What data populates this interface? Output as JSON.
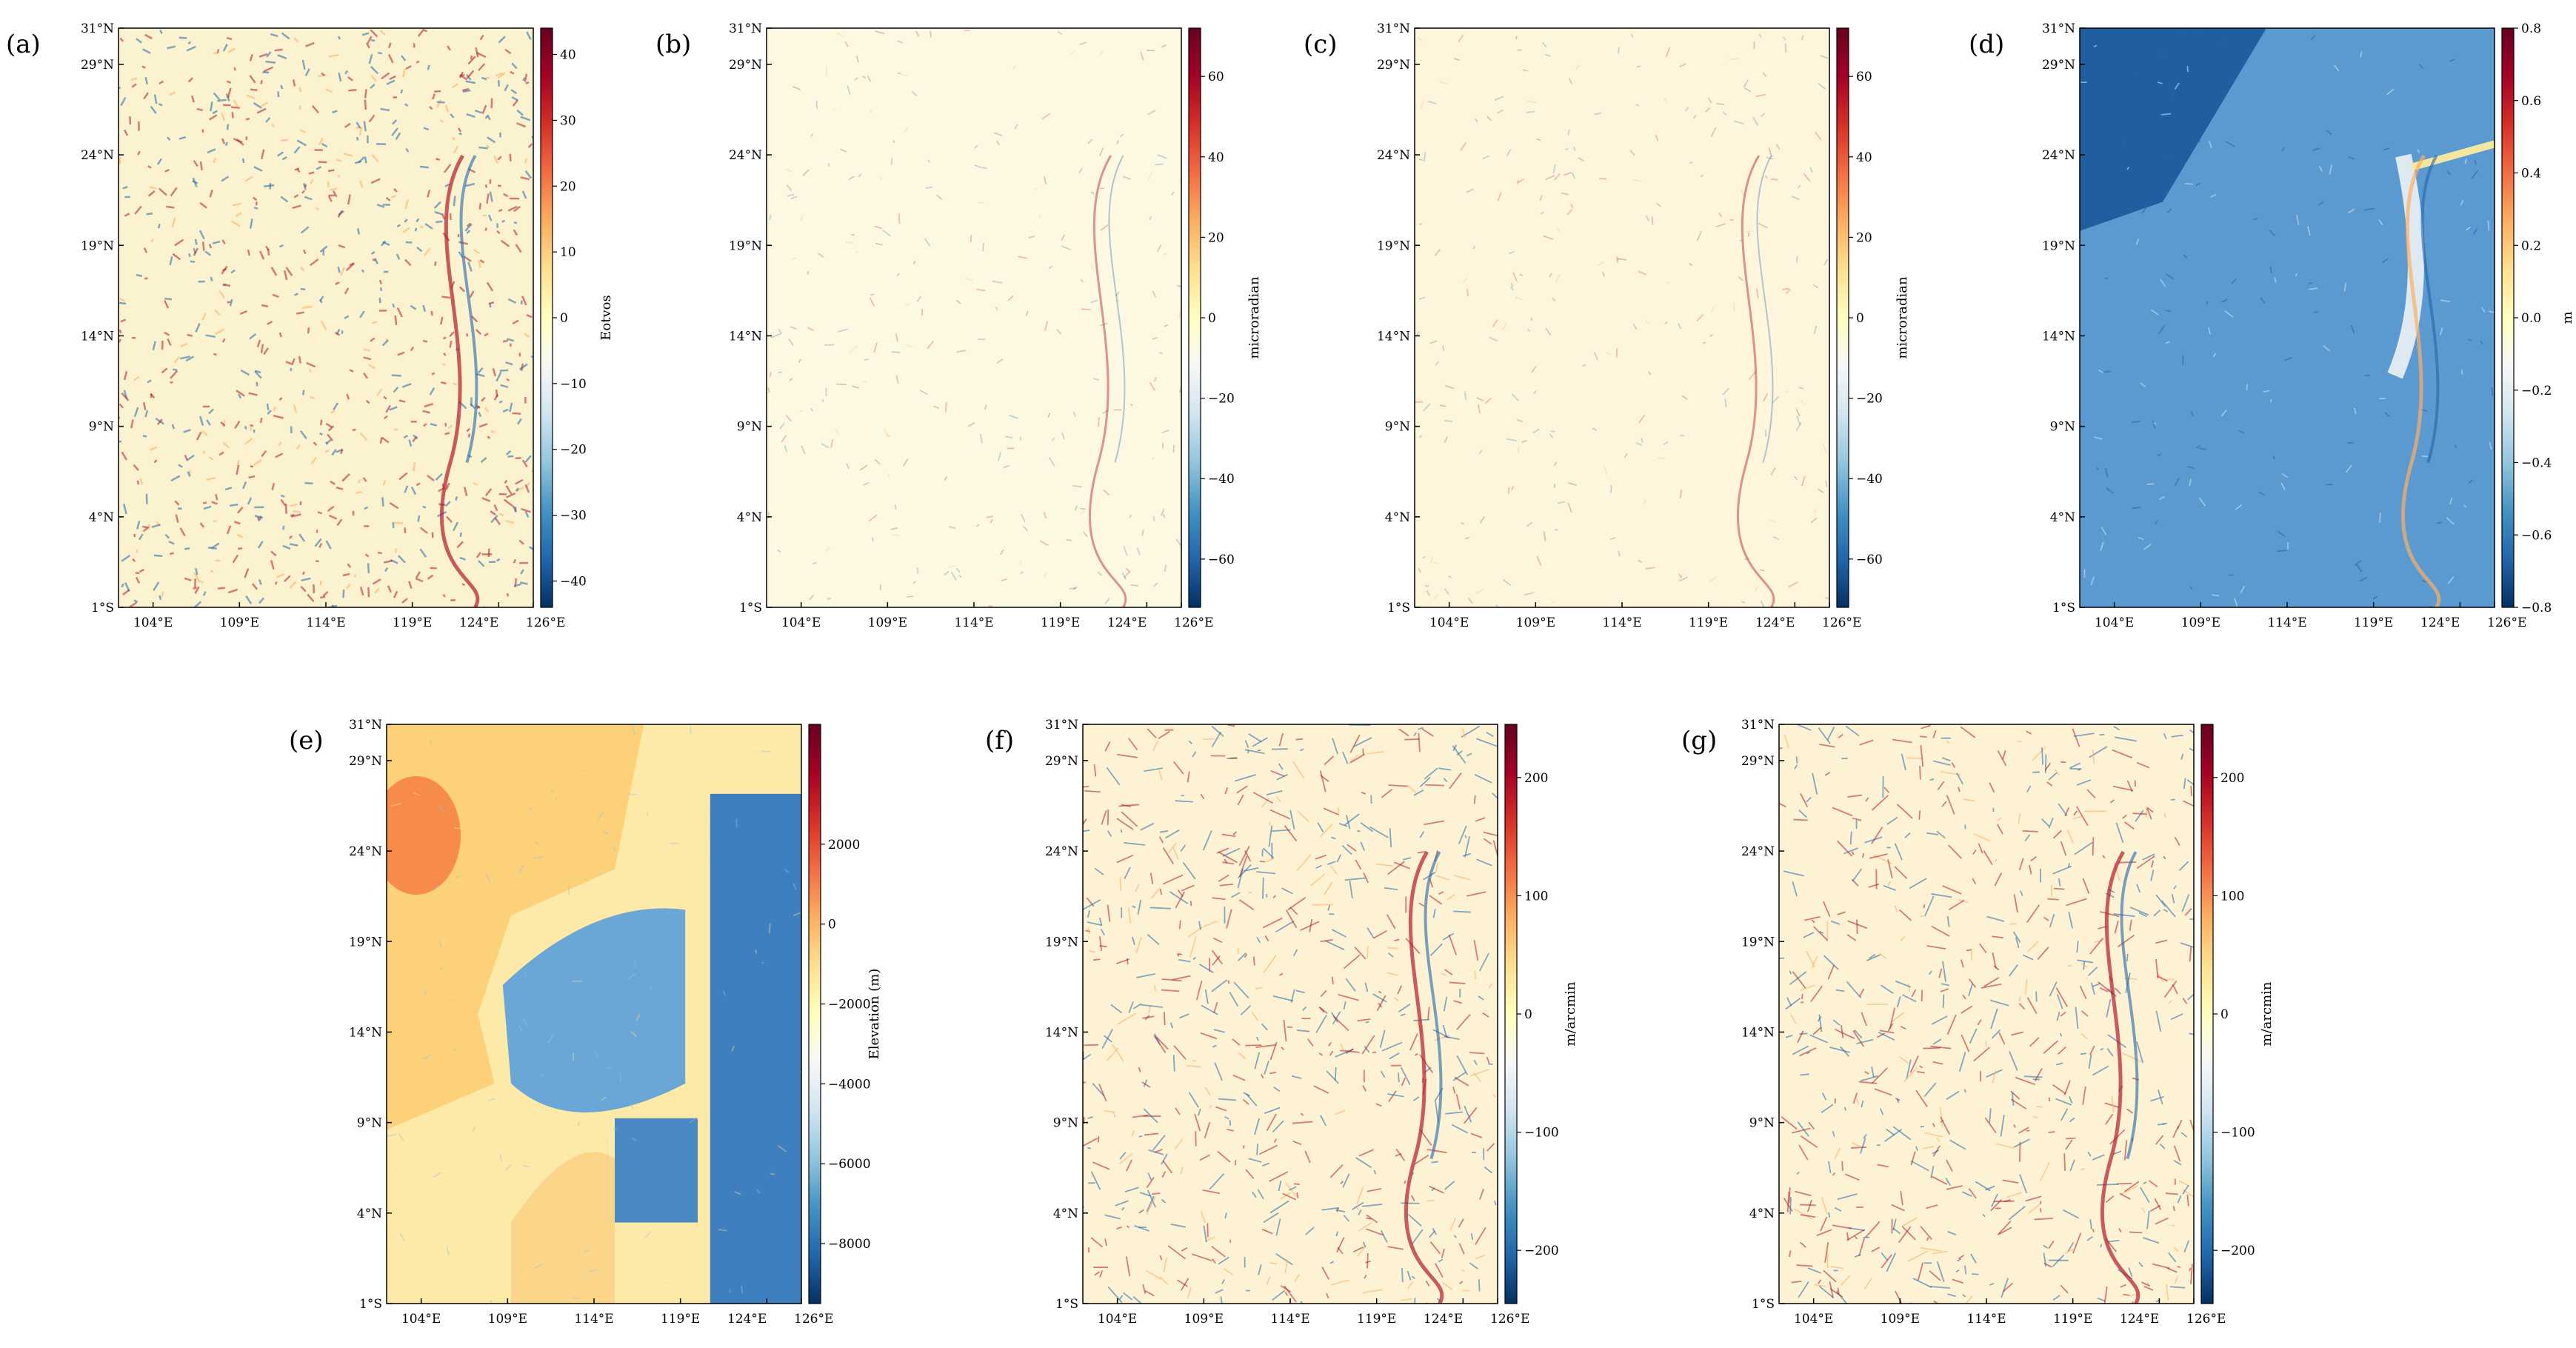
{
  "figure": {
    "colormap": [
      "#053061",
      "#2166ac",
      "#4393c3",
      "#92c5de",
      "#d1e5f0",
      "#f7f7f7",
      "#ffffbf",
      "#fee090",
      "#fdae61",
      "#f46d43",
      "#d73027",
      "#a50026",
      "#67001f"
    ],
    "background": "#ffffff"
  },
  "chart_data": [
    {
      "type": "heatmap",
      "panel_label": "(a)",
      "colorbar_label": "Eotvos",
      "xticks": [
        "104°E",
        "109°E",
        "114°E",
        "119°E",
        "124°E",
        "126°E"
      ],
      "yticks": [
        "31°N",
        "29°N",
        "24°N",
        "19°N",
        "14°N",
        "9°N",
        "4°N",
        "1°S"
      ],
      "colorbar_ticks": [
        "40",
        "30",
        "20",
        "10",
        "0",
        "−10",
        "−20",
        "−30",
        "−40"
      ],
      "colorbar_values": [
        40,
        30,
        20,
        10,
        0,
        -10,
        -20,
        -30,
        -40
      ],
      "colorbar_range": [
        -44,
        44
      ],
      "field_style": "noisy",
      "tint": "#fbf3d0"
    },
    {
      "type": "heatmap",
      "panel_label": "(b)",
      "colorbar_label": "microradian",
      "xticks": [
        "104°E",
        "109°E",
        "114°E",
        "119°E",
        "124°E",
        "126°E"
      ],
      "yticks": [
        "31°N",
        "29°N",
        "24°N",
        "19°N",
        "14°N",
        "9°N",
        "4°N",
        "1°S"
      ],
      "colorbar_ticks": [
        "60",
        "40",
        "20",
        "0",
        "−20",
        "−40",
        "−60"
      ],
      "colorbar_values": [
        60,
        40,
        20,
        0,
        -20,
        -40,
        -60
      ],
      "colorbar_range": [
        -72,
        72
      ],
      "field_style": "faint",
      "tint": "#fdf8e1"
    },
    {
      "type": "heatmap",
      "panel_label": "(c)",
      "colorbar_label": "microradian",
      "xticks": [
        "104°E",
        "109°E",
        "114°E",
        "119°E",
        "124°E",
        "126°E"
      ],
      "yticks": [
        "31°N",
        "29°N",
        "24°N",
        "19°N",
        "14°N",
        "9°N",
        "4°N",
        "1°S"
      ],
      "colorbar_ticks": [
        "60",
        "40",
        "20",
        "0",
        "−20",
        "−40",
        "−60"
      ],
      "colorbar_values": [
        60,
        40,
        20,
        0,
        -20,
        -40,
        -60
      ],
      "colorbar_range": [
        -72,
        72
      ],
      "field_style": "faint",
      "tint": "#fdf6dc"
    },
    {
      "type": "heatmap",
      "panel_label": "(d)",
      "colorbar_label": "m",
      "xticks": [
        "104°E",
        "109°E",
        "114°E",
        "119°E",
        "124°E",
        "126°E"
      ],
      "yticks": [
        "31°N",
        "29°N",
        "24°N",
        "19°N",
        "14°N",
        "9°N",
        "4°N",
        "1°S"
      ],
      "colorbar_ticks": [
        "0.8",
        "0.6",
        "0.4",
        "0.2",
        "0.0",
        "−0.2",
        "−0.4",
        "−0.6",
        "−0.8"
      ],
      "colorbar_values": [
        0.8,
        0.6,
        0.4,
        0.2,
        0,
        -0.2,
        -0.4,
        -0.6,
        -0.8
      ],
      "colorbar_range": [
        -0.8,
        0.8
      ],
      "field_style": "blue",
      "tint": "#6aa6d6"
    },
    {
      "type": "heatmap",
      "panel_label": "(e)",
      "colorbar_label": "Elevation (m)",
      "xticks": [
        "104°E",
        "109°E",
        "114°E",
        "119°E",
        "124°E",
        "126°E"
      ],
      "yticks": [
        "31°N",
        "29°N",
        "24°N",
        "19°N",
        "14°N",
        "9°N",
        "4°N",
        "1°S"
      ],
      "colorbar_ticks": [
        "2000",
        "0",
        "−2000",
        "−4000",
        "−6000",
        "−8000"
      ],
      "colorbar_values": [
        2000,
        0,
        -2000,
        -4000,
        -6000,
        -8000
      ],
      "colorbar_range": [
        -9500,
        5000
      ],
      "field_style": "topo",
      "tint": "#fde9a8"
    },
    {
      "type": "heatmap",
      "panel_label": "(f)",
      "colorbar_label": "m/arcmin",
      "xticks": [
        "104°E",
        "109°E",
        "114°E",
        "119°E",
        "124°E",
        "126°E"
      ],
      "yticks": [
        "31°N",
        "29°N",
        "24°N",
        "19°N",
        "14°N",
        "9°N",
        "4°N",
        "1°S"
      ],
      "colorbar_ticks": [
        "200",
        "100",
        "0",
        "−100",
        "−200"
      ],
      "colorbar_values": [
        200,
        100,
        0,
        -100,
        -200
      ],
      "colorbar_range": [
        -245,
        245
      ],
      "field_style": "slope",
      "tint": "#fdf3d4"
    },
    {
      "type": "heatmap",
      "panel_label": "(g)",
      "colorbar_label": "m/arcmin",
      "xticks": [
        "104°E",
        "109°E",
        "114°E",
        "119°E",
        "124°E",
        "126°E"
      ],
      "yticks": [
        "31°N",
        "29°N",
        "24°N",
        "19°N",
        "14°N",
        "9°N",
        "4°N",
        "1°S"
      ],
      "colorbar_ticks": [
        "200",
        "100",
        "0",
        "−100",
        "−200"
      ],
      "colorbar_values": [
        200,
        100,
        0,
        -100,
        -200
      ],
      "colorbar_range": [
        -245,
        245
      ],
      "field_style": "slope",
      "tint": "#fdf3d4"
    }
  ]
}
